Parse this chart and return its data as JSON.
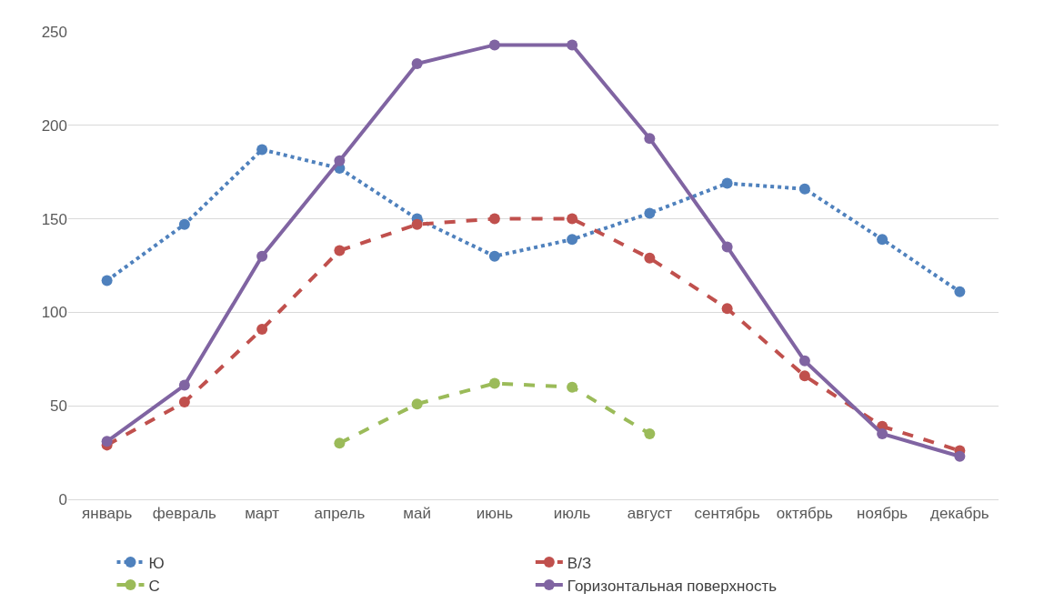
{
  "chart_data": {
    "type": "line",
    "categories": [
      "январь",
      "февраль",
      "март",
      "апрель",
      "май",
      "июнь",
      "июль",
      "август",
      "сентябрь",
      "октябрь",
      "ноябрь",
      "декабрь"
    ],
    "series": [
      {
        "name": "Ю",
        "color": "#4f81bd",
        "line_style": "dotted",
        "values": [
          117,
          147,
          187,
          177,
          150,
          130,
          139,
          153,
          169,
          166,
          139,
          111
        ]
      },
      {
        "name": "В/З",
        "color": "#c0504d",
        "line_style": "dashed",
        "values": [
          29,
          52,
          91,
          133,
          147,
          150,
          150,
          129,
          102,
          66,
          39,
          26
        ]
      },
      {
        "name": "С",
        "color": "#9bbb59",
        "line_style": "dashed",
        "values": [
          null,
          null,
          null,
          30,
          51,
          62,
          60,
          35,
          null,
          null,
          null,
          null
        ]
      },
      {
        "name": "Горизонтальная поверхность",
        "color": "#8064a2",
        "line_style": "solid",
        "values": [
          31,
          61,
          130,
          181,
          233,
          243,
          243,
          193,
          135,
          74,
          35,
          23
        ]
      }
    ],
    "ylim": [
      0,
      250
    ],
    "yticks": [
      0,
      50,
      100,
      150,
      200,
      250
    ],
    "grid": "y",
    "legend": "bottom",
    "marker": "circle"
  }
}
